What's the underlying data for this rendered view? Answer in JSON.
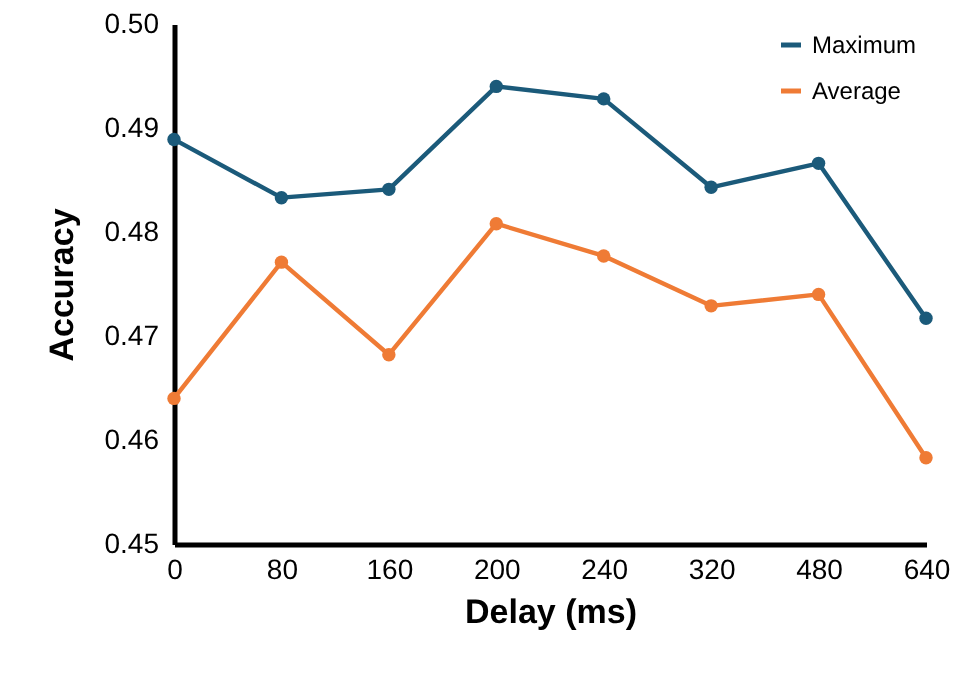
{
  "chart_data": {
    "type": "line",
    "xlabel": "Delay (ms)",
    "ylabel": "Accuracy",
    "categories": [
      "0",
      "80",
      "160",
      "200",
      "240",
      "320",
      "480",
      "640"
    ],
    "series": [
      {
        "name": "Maximum",
        "color": "#1b5a7a",
        "values": [
          0.4889,
          0.4833,
          0.4841,
          0.494,
          0.4928,
          0.4843,
          0.4866,
          0.4717
        ]
      },
      {
        "name": "Average",
        "color": "#ef7b35",
        "values": [
          0.464,
          0.4771,
          0.4682,
          0.4808,
          0.4777,
          0.4729,
          0.474,
          0.4583
        ]
      }
    ],
    "ylim": [
      0.45,
      0.5
    ],
    "yticks": [
      {
        "value": 0.45,
        "label": "0.45"
      },
      {
        "value": 0.46,
        "label": "0.46"
      },
      {
        "value": 0.47,
        "label": "0.47"
      },
      {
        "value": 0.48,
        "label": "0.48"
      },
      {
        "value": 0.49,
        "label": "0.49"
      },
      {
        "value": 0.5,
        "label": "0.50"
      }
    ],
    "legend": "top right",
    "marker": "circle",
    "line_style": "solid"
  }
}
